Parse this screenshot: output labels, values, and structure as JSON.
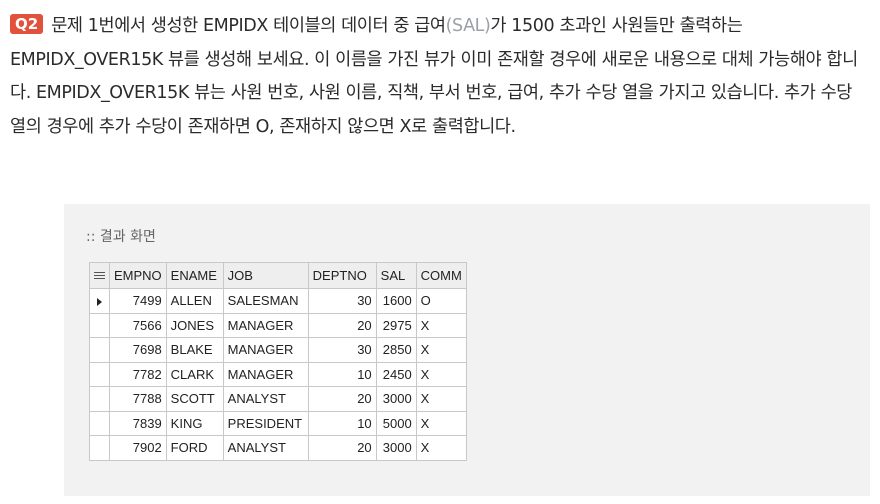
{
  "question": {
    "badge": "Q2",
    "text_before": "문제 1번에서 생성한 EMPIDX 테이블의 데이터 중 급여",
    "text_muted": "(SAL)",
    "text_after": "가 1500 초과인 사원들만 출력하는 EMPIDX_OVER15K 뷰를 생성해 보세요. 이 이름을 가진 뷰가 이미 존재할 경우에 새로운 내용으로 대체 가능해야 합니다. EMPIDX_OVER15K 뷰는 사원 번호, 사원 이름, 직책, 부서 번호, 급여, 추가 수당 열을 가지고 있습니다. 추가 수당 열의 경우에 추가 수당이 존재하면 O, 존재하지 않으면 X로 출력합니다."
  },
  "result": {
    "label": ":: 결과 화면",
    "columns": [
      "EMPNO",
      "ENAME",
      "JOB",
      "DEPTNO",
      "SAL",
      "COMM"
    ],
    "rows": [
      [
        "7499",
        "ALLEN",
        "SALESMAN",
        "30",
        "1600",
        "O"
      ],
      [
        "7566",
        "JONES",
        "MANAGER",
        "20",
        "2975",
        "X"
      ],
      [
        "7698",
        "BLAKE",
        "MANAGER",
        "30",
        "2850",
        "X"
      ],
      [
        "7782",
        "CLARK",
        "MANAGER",
        "10",
        "2450",
        "X"
      ],
      [
        "7788",
        "SCOTT",
        "ANALYST",
        "20",
        "3000",
        "X"
      ],
      [
        "7839",
        "KING",
        "PRESIDENT",
        "10",
        "5000",
        "X"
      ],
      [
        "7902",
        "FORD",
        "ANALYST",
        "20",
        "3000",
        "X"
      ]
    ],
    "selected_row": 0,
    "grid_icon": "grid-icon",
    "row_marker_icon": "current-row-triangle-icon"
  }
}
